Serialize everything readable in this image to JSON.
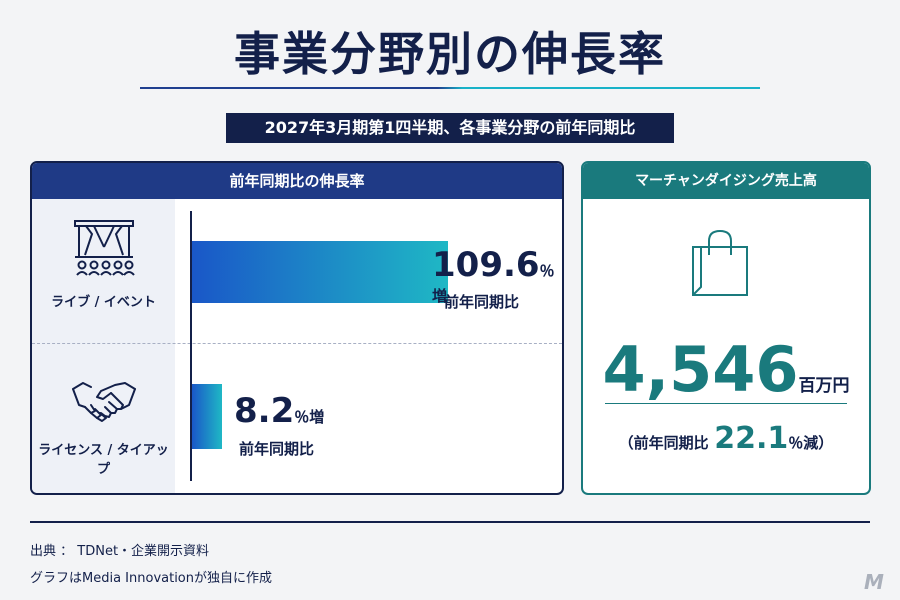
{
  "title": "事業分野別の伸長率",
  "subtitle": "2027年3月期第1四半期、各事業分野の前年同期比",
  "left_panel": {
    "header": "前年同期比の伸長率"
  },
  "right_panel": {
    "header": "マーチャンダイジング売上高",
    "sales_value": "4,546",
    "sales_unit": "百万円",
    "yoy_open": "（前年同期比",
    "yoy_value": "22.1",
    "yoy_unit": "％減）"
  },
  "chart_data": {
    "type": "bar",
    "orientation": "horizontal",
    "title": "前年同期比の伸長率",
    "categories": [
      "ライブ / イベント",
      "ライセンス / タイアップ"
    ],
    "values": [
      109.6,
      8.2
    ],
    "value_labels": [
      "109.6",
      "8.2"
    ],
    "value_unit": "％増",
    "value_caption": "前年同期比",
    "xlim": [
      0,
      120
    ]
  },
  "footer": {
    "source": "出典 ： TDNet・企業開示資料",
    "credit": "グラフはMedia Innovationが独自に作成",
    "watermark": "M"
  },
  "icons": [
    "stage-icon",
    "handshake-icon",
    "shopping-bag-icon"
  ],
  "colors": {
    "navy": "#13204a",
    "blue_header": "#1f3a86",
    "teal": "#1a7a7d",
    "bar_start": "#1a57c8",
    "bar_end": "#1fb8c5"
  }
}
